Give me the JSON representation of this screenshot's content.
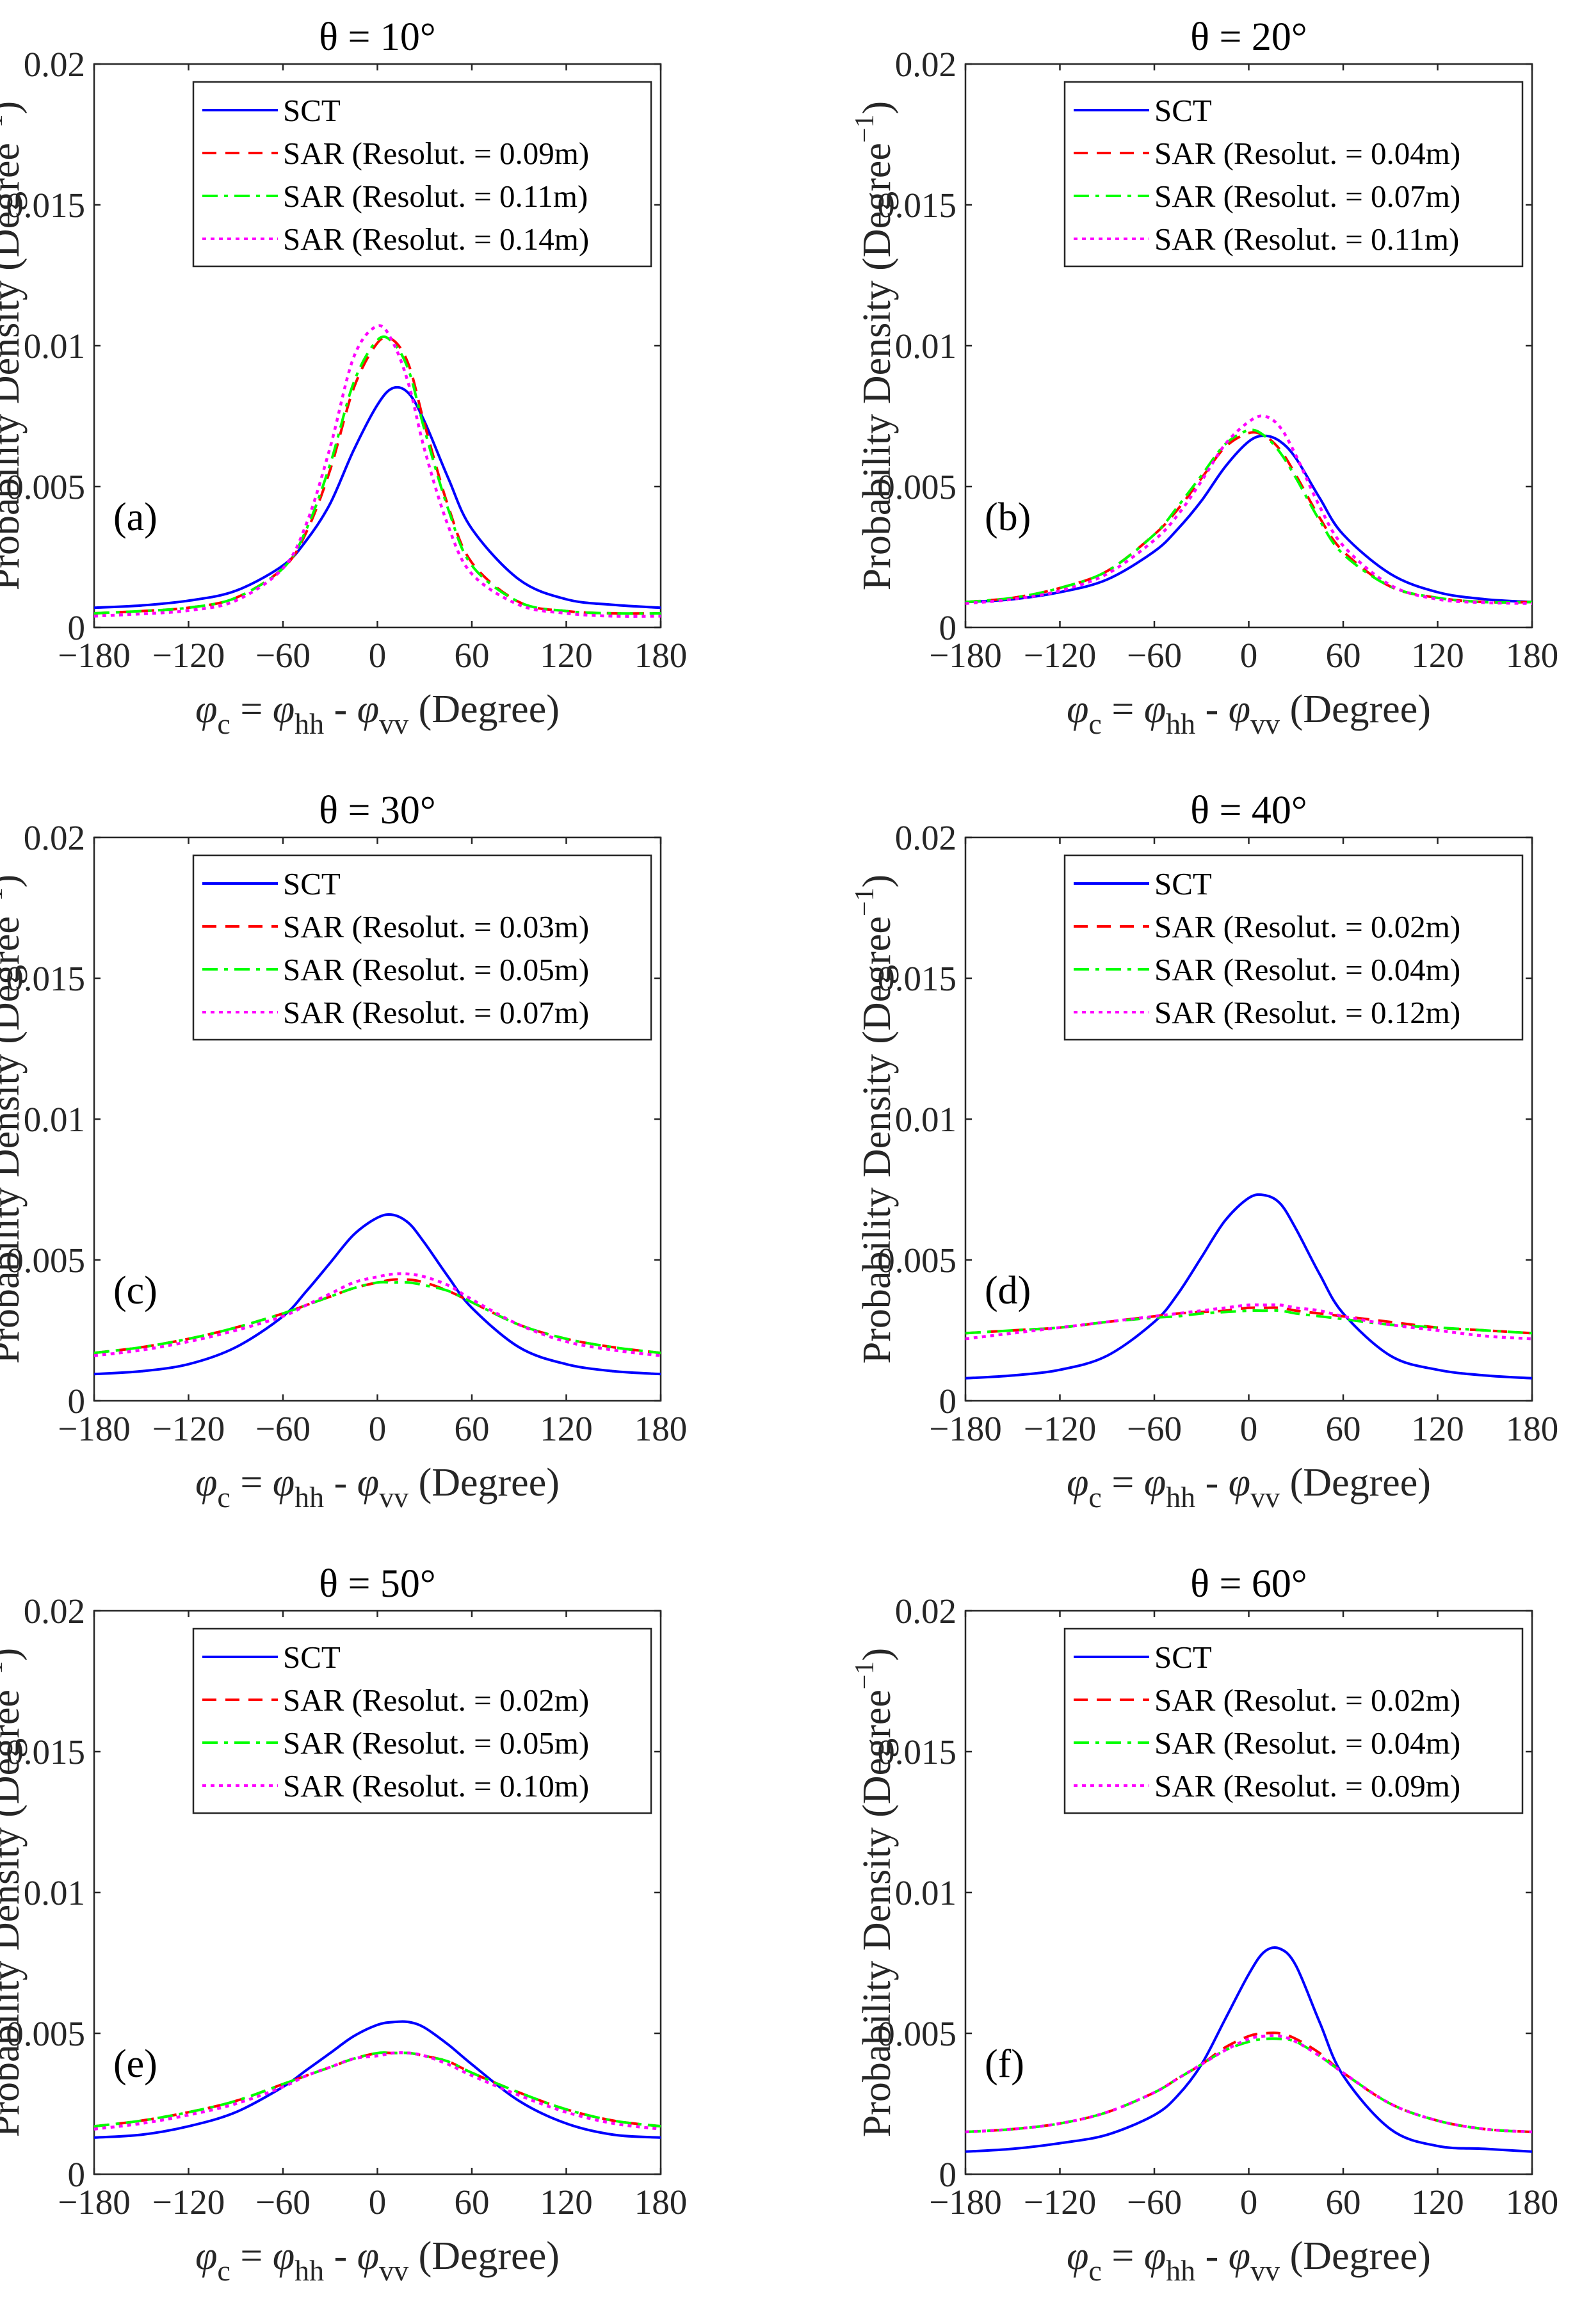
{
  "figure": {
    "colors": {
      "SCT": "#0000ff",
      "SAR1": "#ff0000",
      "SAR2": "#00ff00",
      "SAR3": "#ff00ff",
      "axis": "#262626"
    },
    "xlabel_parts": {
      "phi": "φ",
      "c": "c",
      "eq": " = ",
      "hh": "hh",
      "minus": " - ",
      "vv": "vv",
      "unit": " (Degree)"
    },
    "ylabel_parts": {
      "main": "Probability Density (Degree",
      "exp": "−1",
      "close": ")"
    },
    "xticks": [
      -180,
      -120,
      -60,
      0,
      60,
      120,
      180
    ],
    "xtick_labels": [
      "−180",
      "−120",
      "−60",
      "0",
      "60",
      "120",
      "180"
    ],
    "yticks": [
      0,
      0.005,
      0.01,
      0.015,
      0.02
    ],
    "ytick_labels": [
      "0",
      "0.005",
      "0.01",
      "0.015",
      "0.02"
    ]
  },
  "chart_data": [
    {
      "type": "line",
      "panel": "(a)",
      "title": "θ = 10°",
      "xlim": [
        -180,
        180
      ],
      "ylim": [
        0,
        0.02
      ],
      "x": [
        -180,
        -150,
        -120,
        -90,
        -60,
        -45,
        -30,
        -15,
        0,
        10,
        20,
        30,
        45,
        60,
        90,
        120,
        150,
        180
      ],
      "series": [
        {
          "name": "SCT",
          "style": "solid",
          "values": [
            0.0007,
            0.00078,
            0.00095,
            0.0013,
            0.0022,
            0.0031,
            0.0044,
            0.0063,
            0.0079,
            0.0085,
            0.0083,
            0.0073,
            0.0053,
            0.0035,
            0.0017,
            0.001,
            0.0008,
            0.0007
          ]
        },
        {
          "name": "SAR (Resolut. = 0.09m)",
          "style": "dashed",
          "values": [
            0.0005,
            0.00058,
            0.0007,
            0.00105,
            0.0021,
            0.0034,
            0.0056,
            0.0085,
            0.0101,
            0.0102,
            0.0093,
            0.0072,
            0.0043,
            0.0023,
            0.0009,
            0.00058,
            0.0005,
            0.0005
          ]
        },
        {
          "name": "SAR (Resolut. = 0.11m)",
          "style": "dashdot",
          "values": [
            0.0005,
            0.00058,
            0.0007,
            0.00105,
            0.0021,
            0.0035,
            0.0058,
            0.0087,
            0.0102,
            0.0101,
            0.0091,
            0.007,
            0.0042,
            0.0022,
            0.0009,
            0.00058,
            0.0005,
            0.0005
          ]
        },
        {
          "name": "SAR (Resolut. = 0.14m)",
          "style": "dotted",
          "values": [
            0.0004,
            0.00048,
            0.0006,
            0.00095,
            0.0021,
            0.0037,
            0.0064,
            0.0096,
            0.0107,
            0.0101,
            0.0086,
            0.0063,
            0.0036,
            0.0019,
            0.0008,
            0.0005,
            0.0004,
            0.0004
          ]
        }
      ]
    },
    {
      "type": "line",
      "panel": "(b)",
      "title": "θ = 20°",
      "xlim": [
        -180,
        180
      ],
      "ylim": [
        0,
        0.02
      ],
      "x": [
        -180,
        -150,
        -120,
        -90,
        -60,
        -45,
        -30,
        -15,
        0,
        10,
        20,
        30,
        45,
        60,
        90,
        120,
        150,
        180
      ],
      "series": [
        {
          "name": "SCT",
          "style": "solid",
          "values": [
            0.0009,
            0.001,
            0.00125,
            0.0017,
            0.0027,
            0.0035,
            0.0045,
            0.0057,
            0.0066,
            0.0068,
            0.0066,
            0.006,
            0.0046,
            0.0033,
            0.0019,
            0.00125,
            0.001,
            0.0009
          ]
        },
        {
          "name": "SAR (Resolut. = 0.04m)",
          "style": "dashed",
          "values": [
            0.0009,
            0.00105,
            0.0014,
            0.002,
            0.0033,
            0.0042,
            0.0053,
            0.0064,
            0.0069,
            0.0068,
            0.0063,
            0.0054,
            0.0039,
            0.0027,
            0.00145,
            0.00105,
            0.0009,
            0.0009
          ]
        },
        {
          "name": "SAR (Resolut. = 0.07m)",
          "style": "dashdot",
          "values": [
            0.0009,
            0.00105,
            0.0014,
            0.002,
            0.0033,
            0.0043,
            0.0054,
            0.0065,
            0.007,
            0.0068,
            0.0062,
            0.0053,
            0.0038,
            0.0026,
            0.00145,
            0.00105,
            0.0009,
            0.0009
          ]
        },
        {
          "name": "SAR (Resolut. = 0.11m)",
          "style": "dotted",
          "values": [
            0.00085,
            0.001,
            0.0013,
            0.0019,
            0.0031,
            0.004,
            0.0052,
            0.0065,
            0.0073,
            0.0075,
            0.0071,
            0.0061,
            0.0043,
            0.0029,
            0.0015,
            0.001,
            0.00088,
            0.00085
          ]
        }
      ]
    },
    {
      "type": "line",
      "panel": "(c)",
      "title": "θ = 30°",
      "xlim": [
        -180,
        180
      ],
      "ylim": [
        0,
        0.02
      ],
      "x": [
        -180,
        -150,
        -120,
        -90,
        -60,
        -45,
        -30,
        -15,
        0,
        10,
        20,
        30,
        45,
        60,
        90,
        120,
        150,
        180
      ],
      "series": [
        {
          "name": "SCT",
          "style": "solid",
          "values": [
            0.00095,
            0.00105,
            0.0013,
            0.0019,
            0.003,
            0.0039,
            0.0049,
            0.0059,
            0.0065,
            0.0066,
            0.0063,
            0.0056,
            0.0044,
            0.0033,
            0.0019,
            0.0013,
            0.00105,
            0.00095
          ]
        },
        {
          "name": "SAR (Resolut. = 0.03m)",
          "style": "dashed",
          "values": [
            0.0017,
            0.0019,
            0.0022,
            0.0026,
            0.0031,
            0.0034,
            0.0037,
            0.004,
            0.0042,
            0.0043,
            0.0043,
            0.0042,
            0.0039,
            0.0035,
            0.0027,
            0.0022,
            0.0019,
            0.0017
          ]
        },
        {
          "name": "SAR (Resolut. = 0.05m)",
          "style": "dashdot",
          "values": [
            0.0017,
            0.0019,
            0.0022,
            0.0026,
            0.0031,
            0.0034,
            0.0037,
            0.004,
            0.0042,
            0.0042,
            0.0042,
            0.0041,
            0.0039,
            0.0035,
            0.0027,
            0.0022,
            0.0019,
            0.0017
          ]
        },
        {
          "name": "SAR (Resolut. = 0.07m)",
          "style": "dotted",
          "values": [
            0.0016,
            0.0018,
            0.0021,
            0.0025,
            0.003,
            0.0034,
            0.0038,
            0.0042,
            0.0044,
            0.0045,
            0.0045,
            0.0044,
            0.0041,
            0.0036,
            0.0027,
            0.0021,
            0.0018,
            0.0016
          ]
        }
      ]
    },
    {
      "type": "line",
      "panel": "(d)",
      "title": "θ = 40°",
      "xlim": [
        -180,
        180
      ],
      "ylim": [
        0,
        0.02
      ],
      "x": [
        -180,
        -150,
        -120,
        -90,
        -60,
        -45,
        -30,
        -15,
        0,
        10,
        20,
        30,
        45,
        60,
        90,
        120,
        150,
        180
      ],
      "series": [
        {
          "name": "SCT",
          "style": "solid",
          "values": [
            0.0008,
            0.0009,
            0.0011,
            0.0016,
            0.0028,
            0.0038,
            0.0051,
            0.0064,
            0.0072,
            0.0073,
            0.007,
            0.0061,
            0.0045,
            0.0031,
            0.0016,
            0.0011,
            0.0009,
            0.0008
          ]
        },
        {
          "name": "SAR (Resolut. = 0.02m)",
          "style": "dashed",
          "values": [
            0.0024,
            0.0025,
            0.0026,
            0.0028,
            0.003,
            0.0031,
            0.00315,
            0.0032,
            0.0033,
            0.0033,
            0.0033,
            0.0032,
            0.0031,
            0.003,
            0.0028,
            0.0026,
            0.0025,
            0.0024
          ]
        },
        {
          "name": "SAR (Resolut. = 0.04m)",
          "style": "dashdot",
          "values": [
            0.0024,
            0.0025,
            0.0026,
            0.0028,
            0.00295,
            0.003,
            0.0031,
            0.00315,
            0.0032,
            0.0032,
            0.0032,
            0.0031,
            0.003,
            0.0029,
            0.0027,
            0.0026,
            0.0025,
            0.0024
          ]
        },
        {
          "name": "SAR (Resolut. = 0.12m)",
          "style": "dotted",
          "values": [
            0.0022,
            0.0024,
            0.0026,
            0.0028,
            0.003,
            0.0031,
            0.0032,
            0.0033,
            0.0034,
            0.0034,
            0.0034,
            0.0033,
            0.0032,
            0.003,
            0.0027,
            0.0025,
            0.0023,
            0.0022
          ]
        }
      ]
    },
    {
      "type": "line",
      "panel": "(e)",
      "title": "θ = 50°",
      "xlim": [
        -180,
        180
      ],
      "ylim": [
        0,
        0.02
      ],
      "x": [
        -180,
        -150,
        -120,
        -90,
        -60,
        -45,
        -30,
        -15,
        0,
        10,
        20,
        30,
        45,
        60,
        90,
        120,
        150,
        180
      ],
      "series": [
        {
          "name": "SCT",
          "style": "solid",
          "values": [
            0.0013,
            0.0014,
            0.0017,
            0.0022,
            0.0031,
            0.0037,
            0.0043,
            0.0049,
            0.0053,
            0.0054,
            0.0054,
            0.0052,
            0.0046,
            0.0039,
            0.0026,
            0.0018,
            0.0014,
            0.0013
          ]
        },
        {
          "name": "SAR (Resolut. = 0.02m)",
          "style": "dashed",
          "values": [
            0.0017,
            0.0019,
            0.0022,
            0.0026,
            0.0032,
            0.0035,
            0.0038,
            0.0041,
            0.0043,
            0.0043,
            0.0043,
            0.0042,
            0.004,
            0.0036,
            0.0029,
            0.0023,
            0.0019,
            0.0017
          ]
        },
        {
          "name": "SAR (Resolut. = 0.05m)",
          "style": "dashdot",
          "values": [
            0.0017,
            0.0019,
            0.0022,
            0.0026,
            0.0032,
            0.0035,
            0.0038,
            0.0041,
            0.0043,
            0.0043,
            0.0043,
            0.0042,
            0.004,
            0.0036,
            0.0029,
            0.0023,
            0.0019,
            0.0017
          ]
        },
        {
          "name": "SAR (Resolut. = 0.10m)",
          "style": "dotted",
          "values": [
            0.0016,
            0.0018,
            0.0021,
            0.0025,
            0.0031,
            0.0035,
            0.0038,
            0.0041,
            0.0042,
            0.0043,
            0.0043,
            0.0042,
            0.0039,
            0.0035,
            0.0028,
            0.0022,
            0.0018,
            0.0016
          ]
        }
      ]
    },
    {
      "type": "line",
      "panel": "(f)",
      "title": "θ = 60°",
      "xlim": [
        -180,
        180
      ],
      "ylim": [
        0,
        0.02
      ],
      "x": [
        -180,
        -150,
        -120,
        -90,
        -60,
        -45,
        -30,
        -15,
        0,
        10,
        20,
        30,
        45,
        60,
        90,
        120,
        150,
        180
      ],
      "series": [
        {
          "name": "SCT",
          "style": "solid",
          "values": [
            0.0008,
            0.0009,
            0.0011,
            0.0014,
            0.0021,
            0.0028,
            0.0039,
            0.0055,
            0.0071,
            0.0079,
            0.008,
            0.0074,
            0.0054,
            0.0035,
            0.0016,
            0.001,
            0.0009,
            0.0008
          ]
        },
        {
          "name": "SAR (Resolut. = 0.02m)",
          "style": "dashed",
          "values": [
            0.0015,
            0.0016,
            0.0018,
            0.0022,
            0.0029,
            0.0034,
            0.0039,
            0.0045,
            0.0049,
            0.005,
            0.005,
            0.0048,
            0.0043,
            0.0036,
            0.0025,
            0.0019,
            0.0016,
            0.0015
          ]
        },
        {
          "name": "SAR (Resolut. = 0.04m)",
          "style": "dashdot",
          "values": [
            0.0015,
            0.0016,
            0.0018,
            0.0022,
            0.0029,
            0.0034,
            0.0039,
            0.0044,
            0.0047,
            0.0048,
            0.0048,
            0.0047,
            0.0042,
            0.0036,
            0.0025,
            0.0019,
            0.0016,
            0.0015
          ]
        },
        {
          "name": "SAR (Resolut. = 0.09m)",
          "style": "dotted",
          "values": [
            0.0015,
            0.0016,
            0.0018,
            0.0022,
            0.0029,
            0.0034,
            0.0039,
            0.0044,
            0.0048,
            0.0049,
            0.0049,
            0.0047,
            0.0042,
            0.0036,
            0.0025,
            0.0019,
            0.0016,
            0.0015
          ]
        }
      ]
    }
  ]
}
